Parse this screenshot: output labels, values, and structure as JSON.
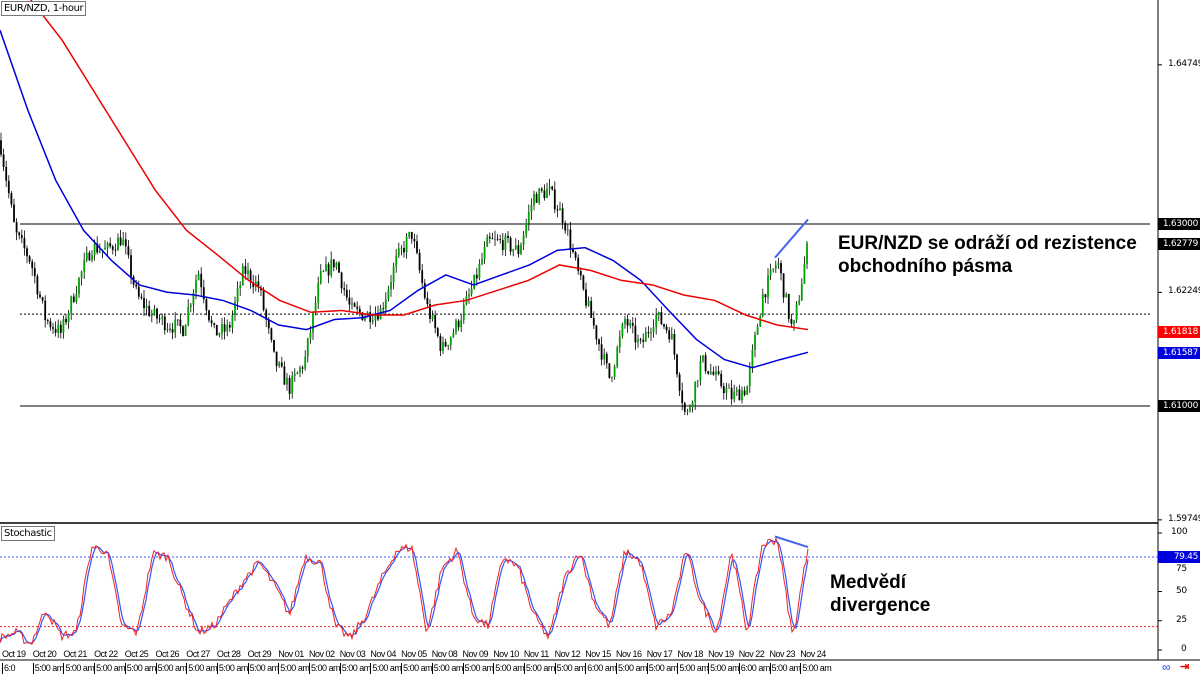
{
  "window": {
    "title": "EUR/NZD, 1-hour",
    "indicator_title": "Stochastic"
  },
  "colors": {
    "up_candle": "#00a000",
    "down_candle": "#000000",
    "ma_fast": "#0000dd",
    "ma_slow": "#ee0000",
    "divergence": "#4466ee",
    "stoch_k": "#ee2222",
    "stoch_d": "#3355ff"
  },
  "icons": {
    "link": "link-icon",
    "scroll_end": "scroll-to-end-icon"
  },
  "chart_data": [
    {
      "type": "candlestick",
      "title": "EUR/NZD, 1-hour",
      "ylim": [
        1.5958,
        1.655
      ],
      "y_ticks": [
        "1.64749",
        "1.62249",
        "1.59749"
      ],
      "price_tags": [
        {
          "value": "1.63000",
          "bg": "#000000",
          "fg": "#ffffff"
        },
        {
          "value": "1.62779",
          "bg": "#000000",
          "fg": "#ffffff",
          "marker": "▼"
        },
        {
          "value": "1.61818",
          "bg": "#ff0000",
          "fg": "#ffffff"
        },
        {
          "value": "1.61587",
          "bg": "#0000dd",
          "fg": "#ffffff"
        },
        {
          "value": "1.61000",
          "bg": "#000000",
          "fg": "#ffffff"
        }
      ],
      "horizontal_lines": [
        {
          "price": 1.63,
          "style": "solid"
        },
        {
          "price": 1.61,
          "style": "solid"
        },
        {
          "price": 1.6201,
          "style": "dotted"
        }
      ],
      "close_path": [
        1.6392,
        1.629,
        1.626,
        1.6195,
        1.618,
        1.623,
        1.6275,
        1.6271,
        1.6285,
        1.622,
        1.62,
        1.619,
        1.6185,
        1.6249,
        1.618,
        1.6184,
        1.625,
        1.623,
        1.615,
        1.612,
        1.615,
        1.624,
        1.626,
        1.6205,
        1.62,
        1.6205,
        1.626,
        1.629,
        1.621,
        1.6162,
        1.619,
        1.623,
        1.628,
        1.628,
        1.627,
        1.633,
        1.6337,
        1.6305,
        1.624,
        1.6185,
        1.613,
        1.6195,
        1.6165,
        1.62,
        1.618,
        1.6085,
        1.615,
        1.613,
        1.611,
        1.612,
        1.622,
        1.626,
        1.618,
        1.6278
      ],
      "ma_fast": [
        1.6513,
        1.6425,
        1.6348,
        1.6293,
        1.626,
        1.6233,
        1.6225,
        1.6222,
        1.6216,
        1.6205,
        1.6189,
        1.6184,
        1.6195,
        1.6197,
        1.6205,
        1.6227,
        1.6244,
        1.6233,
        1.6244,
        1.6255,
        1.6271,
        1.6274,
        1.626,
        1.6238,
        1.6205,
        1.6173,
        1.6151,
        1.6142,
        1.6151,
        1.6159
      ],
      "ma_slow": [
        1.659,
        1.6546,
        1.6502,
        1.6447,
        1.6392,
        1.6337,
        1.6293,
        1.6266,
        1.6238,
        1.6216,
        1.6203,
        1.6205,
        1.62,
        1.62,
        1.6211,
        1.6216,
        1.6227,
        1.6238,
        1.6255,
        1.6249,
        1.6238,
        1.6233,
        1.6222,
        1.6216,
        1.62,
        1.6189,
        1.6184
      ],
      "divergence_line": [
        1.6263,
        1.6305
      ],
      "annotation": "EUR/NZD se odráží od rezistence obchodního pásma"
    },
    {
      "type": "line",
      "title": "Stochastic",
      "ylim": [
        0,
        100
      ],
      "y_ticks": [
        "100",
        "75",
        "50",
        "25",
        "0"
      ],
      "current_value": "79.45",
      "levels": [
        {
          "value": 79.45,
          "color": "#3355ff"
        },
        {
          "value": 20,
          "color": "#ee2222"
        }
      ],
      "k_path": [
        10,
        15,
        5,
        35,
        12,
        15,
        88,
        85,
        20,
        15,
        82,
        80,
        45,
        15,
        20,
        40,
        60,
        75,
        55,
        30,
        80,
        75,
        20,
        10,
        30,
        60,
        85,
        88,
        15,
        70,
        85,
        30,
        20,
        80,
        70,
        30,
        10,
        60,
        85,
        40,
        20,
        85,
        75,
        20,
        30,
        85,
        40,
        15,
        85,
        15,
        90,
        95,
        10,
        88
      ],
      "divergence_line": [
        97,
        88
      ],
      "annotation": "Medvědí divergence"
    }
  ],
  "x_axis": {
    "dates": [
      "Oct 19",
      "Oct 20",
      "Oct 21",
      "Oct 22",
      "Oct 25",
      "Oct 26",
      "Oct 27",
      "Oct 28",
      "Oct 29",
      "Nov 01",
      "Nov 02",
      "Nov 03",
      "Nov 04",
      "Nov 05",
      "Nov 08",
      "Nov 09",
      "Nov 10",
      "Nov 11",
      "Nov 12",
      "Nov 15",
      "Nov 16",
      "Nov 17",
      "Nov 18",
      "Nov 19",
      "Nov 22",
      "Nov 23",
      "Nov 24"
    ],
    "times": [
      "6:0",
      "5:00 am",
      "5:00 am",
      "5:00 am",
      "5:00 am",
      "5:00 am",
      "5:00 am",
      "5:00 am",
      "5:00 am",
      "5:00 am",
      "5:00 am",
      "5:00 am",
      "5:00 am",
      "5:00 am",
      "5:00 am",
      "5:00 am",
      "5:00 am",
      "5:00 am",
      "5:00 am",
      "6:00 am",
      "5:00 am",
      "5:00 am",
      "5:00 am",
      "5:00 am",
      "6:00 am",
      "5:00 am",
      "5:00 am"
    ]
  }
}
